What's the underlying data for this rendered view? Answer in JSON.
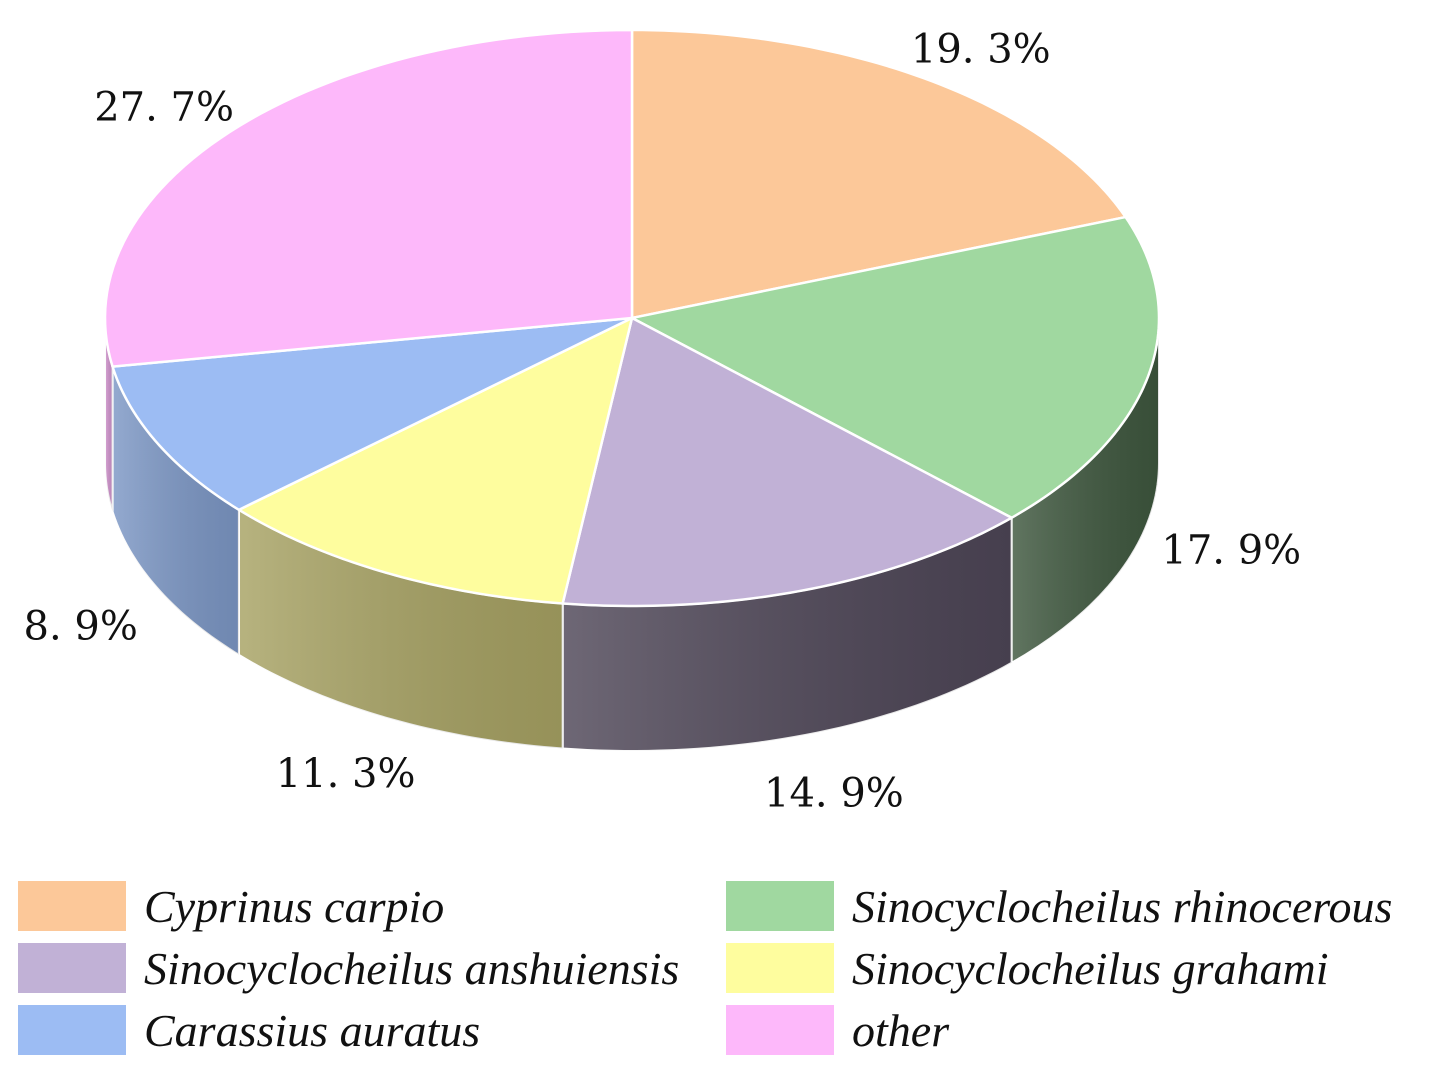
{
  "chart_data": {
    "type": "pie",
    "style": "3d",
    "slices": [
      {
        "label": "Cyprinus carpio",
        "value": 19.3,
        "value_label": "19. 3%",
        "color": "#FCC899",
        "side_color": "#C9A07A"
      },
      {
        "label": "Sinocyclocheilus rhinocerous",
        "value": 17.9,
        "value_label": "17. 9%",
        "color": "#A0D8A0",
        "side_color": "#3E573E"
      },
      {
        "label": "Sinocyclocheilus anshuiensis",
        "value": 14.9,
        "value_label": "14. 9%",
        "color": "#C1B1D6",
        "side_color": "#4E4657"
      },
      {
        "label": "Sinocyclocheilus grahami",
        "value": 11.3,
        "value_label": "11. 3%",
        "color": "#FEFD9E",
        "side_color": "#A7A263"
      },
      {
        "label": "Carassius auratus",
        "value": 8.9,
        "value_label": "8. 9%",
        "color": "#9CBCF3",
        "side_color": "#7C97C5"
      },
      {
        "label": "other",
        "value": 27.7,
        "value_label": "27. 7%",
        "color": "#FDB8FA",
        "side_color": "#CF92CC"
      }
    ],
    "legend": {
      "position": "bottom",
      "columns": 2,
      "order": [
        "Cyprinus carpio",
        "Sinocyclocheilus rhinocerous",
        "Sinocyclocheilus anshuiensis",
        "Sinocyclocheilus grahami",
        "Carassius auratus",
        "other"
      ]
    }
  }
}
